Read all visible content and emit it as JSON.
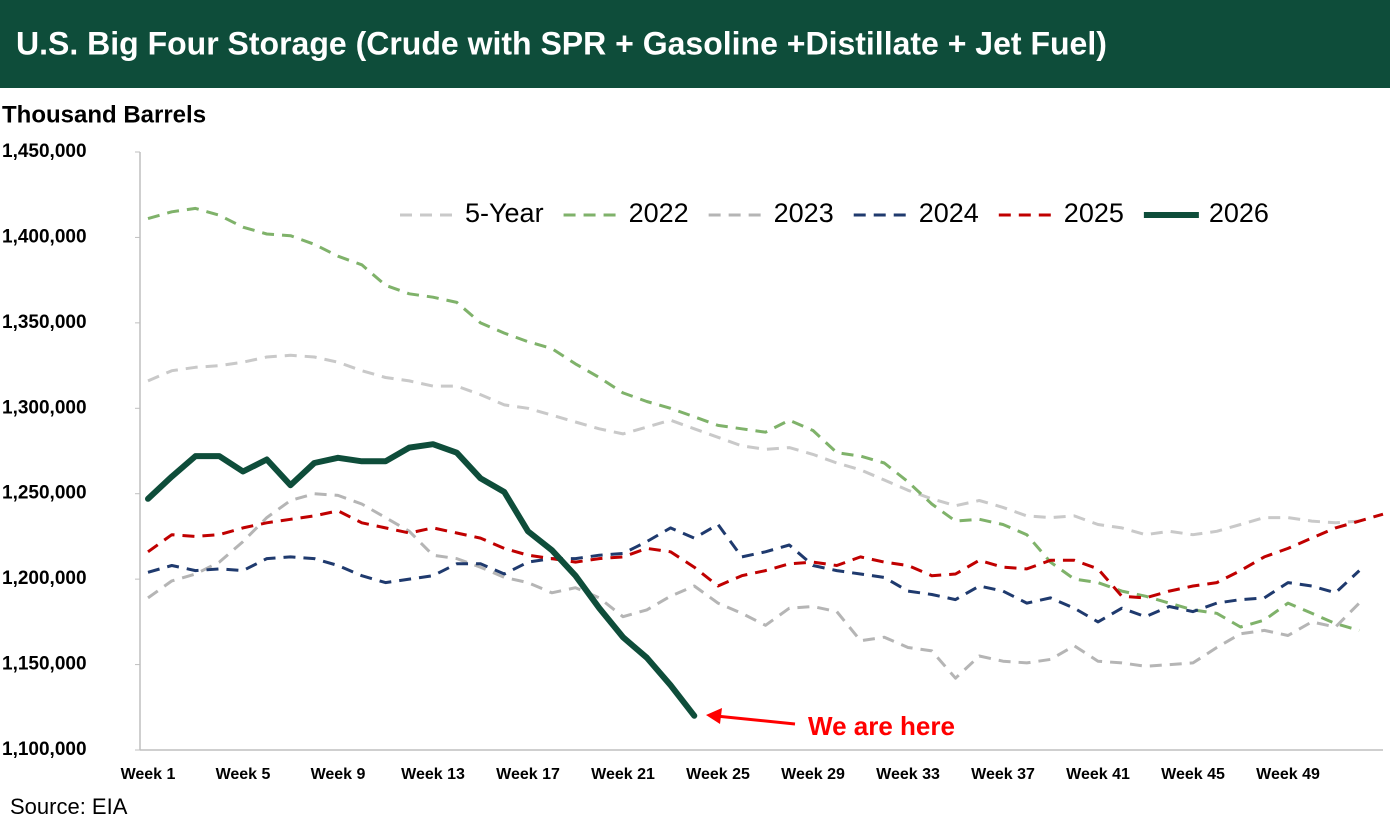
{
  "chart_data": {
    "type": "line",
    "title": "U.S. Big Four Storage (Crude with SPR + Gasoline +Distillate + Jet Fuel)",
    "y_axis_label": "Thousand Barrels",
    "source": "Source: EIA",
    "annotation": "We are here",
    "categories": [
      "Week 1",
      null,
      null,
      null,
      "Week 5",
      null,
      null,
      null,
      "Week 9",
      null,
      null,
      null,
      "Week 13",
      null,
      null,
      null,
      "Week 17",
      null,
      null,
      null,
      "Week 21",
      null,
      null,
      null,
      "Week 25",
      null,
      null,
      null,
      "Week 29",
      null,
      null,
      null,
      "Week 33",
      null,
      null,
      null,
      "Week 37",
      null,
      null,
      null,
      "Week 41",
      null,
      null,
      null,
      "Week 45",
      null,
      null,
      null,
      "Week 49",
      null,
      null,
      null,
      null
    ],
    "ylim": [
      1100000,
      1450000
    ],
    "yticks": [
      {
        "value": 1100000,
        "label": "1,100,000"
      },
      {
        "value": 1150000,
        "label": "1,150,000"
      },
      {
        "value": 1200000,
        "label": "1,200,000"
      },
      {
        "value": 1250000,
        "label": "1,250,000"
      },
      {
        "value": 1300000,
        "label": "1,300,000"
      },
      {
        "value": 1350000,
        "label": "1,350,000"
      },
      {
        "value": 1400000,
        "label": "1,400,000"
      },
      {
        "value": 1450000,
        "label": "1,450,000"
      }
    ],
    "grid": false,
    "legend": "top-right",
    "series": [
      {
        "name": "5-Year",
        "color": "#c9c9c9",
        "style": "dashed",
        "values": [
          1316000,
          1322000,
          1324000,
          1325000,
          1327000,
          1330000,
          1331000,
          1330000,
          1327000,
          1322000,
          1318000,
          1316000,
          1313000,
          1313000,
          1308000,
          1302000,
          1300000,
          1296000,
          1292000,
          1288000,
          1285000,
          1289000,
          1293000,
          1288000,
          1283000,
          1278000,
          1276000,
          1277000,
          1273000,
          1268000,
          1264000,
          1258000,
          1252000,
          1247000,
          1243000,
          1246000,
          1242000,
          1237000,
          1236000,
          1237000,
          1232000,
          1230000,
          1226000,
          1228000,
          1226000,
          1228000,
          1232000,
          1236000,
          1236000,
          1234000,
          1233000,
          1234000,
          null
        ]
      },
      {
        "name": "2022",
        "color": "#7fb26a",
        "style": "dashed",
        "values": [
          1411000,
          1415000,
          1417000,
          1413000,
          1406000,
          1402000,
          1401000,
          1396000,
          1389000,
          1384000,
          1372000,
          1367000,
          1365000,
          1362000,
          1350000,
          1344000,
          1339000,
          1335000,
          1326000,
          1318000,
          1309000,
          1304000,
          1300000,
          1295000,
          1290000,
          1288000,
          1286000,
          1293000,
          1287000,
          1274000,
          1272000,
          1268000,
          1257000,
          1244000,
          1234000,
          1235000,
          1232000,
          1226000,
          1210000,
          1200000,
          1198000,
          1193000,
          1190000,
          1186000,
          1182000,
          1180000,
          1172000,
          1176000,
          1186000,
          1180000,
          1174000,
          1170000,
          null
        ]
      },
      {
        "name": "2023",
        "color": "#b5b5b5",
        "style": "dashed",
        "values": [
          1189000,
          1199000,
          1203000,
          1210000,
          1222000,
          1236000,
          1246000,
          1250000,
          1249000,
          1244000,
          1236000,
          1228000,
          1214000,
          1212000,
          1207000,
          1201000,
          1198000,
          1192000,
          1195000,
          1189000,
          1178000,
          1182000,
          1190000,
          1196000,
          1186000,
          1180000,
          1173000,
          1183000,
          1184000,
          1181000,
          1164000,
          1166000,
          1160000,
          1158000,
          1142000,
          1155000,
          1152000,
          1151000,
          1153000,
          1161000,
          1152000,
          1151000,
          1149000,
          1150000,
          1151000,
          1160000,
          1168000,
          1170000,
          1167000,
          1175000,
          1172000,
          1186000,
          null
        ]
      },
      {
        "name": "2024",
        "color": "#1f3a6e",
        "style": "dashed",
        "values": [
          1204000,
          1208000,
          1205000,
          1206000,
          1205000,
          1212000,
          1213000,
          1212000,
          1208000,
          1202000,
          1198000,
          1200000,
          1202000,
          1209000,
          1209000,
          1203000,
          1210000,
          1212000,
          1212000,
          1214000,
          1215000,
          1222000,
          1230000,
          1224000,
          1232000,
          1213000,
          1216000,
          1220000,
          1208000,
          1205000,
          1203000,
          1201000,
          1193000,
          1191000,
          1188000,
          1196000,
          1193000,
          1186000,
          1189000,
          1183000,
          1175000,
          1183000,
          1178000,
          1184000,
          1181000,
          1186000,
          1188000,
          1189000,
          1198000,
          1196000,
          1192000,
          1205000,
          null
        ]
      },
      {
        "name": "2025",
        "color": "#c00000",
        "style": "dashed",
        "values": [
          1216000,
          1226000,
          1225000,
          1226000,
          1230000,
          1233000,
          1235000,
          1237000,
          1240000,
          1233000,
          1230000,
          1227000,
          1230000,
          1227000,
          1224000,
          1218000,
          1214000,
          1212000,
          1210000,
          1212000,
          1213000,
          1218000,
          1216000,
          1207000,
          1196000,
          1202000,
          1205000,
          1209000,
          1210000,
          1208000,
          1213000,
          1210000,
          1208000,
          1202000,
          1203000,
          1211000,
          1207000,
          1206000,
          1211000,
          1211000,
          1206000,
          1190000,
          1189000,
          1193000,
          1196000,
          1198000,
          1205000,
          1213000,
          1218000,
          1224000,
          1230000,
          1234000,
          1238000
        ]
      },
      {
        "name": "2026",
        "color": "#0e4d3a",
        "style": "solid",
        "values": [
          1247000,
          1260000,
          1272000,
          1272000,
          1263000,
          1270000,
          1255000,
          1268000,
          1271000,
          1269000,
          1269000,
          1277000,
          1279000,
          1274000,
          1259000,
          1251000,
          1228000,
          1217000,
          1202000,
          1183000,
          1166000,
          1154000,
          1138000,
          1120000,
          null,
          null,
          null,
          null,
          null,
          null,
          null,
          null,
          null,
          null,
          null,
          null,
          null,
          null,
          null,
          null,
          null,
          null,
          null,
          null,
          null,
          null,
          null,
          null,
          null,
          null,
          null,
          null,
          null
        ]
      }
    ]
  }
}
